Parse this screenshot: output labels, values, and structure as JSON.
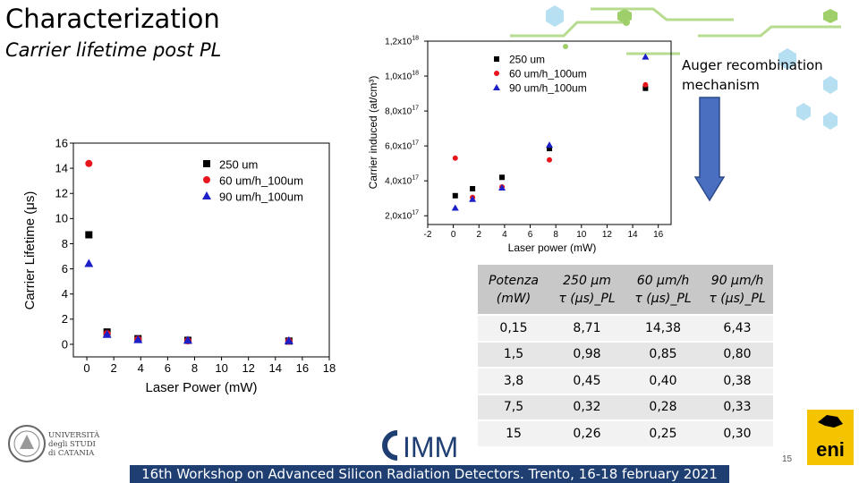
{
  "slide": {
    "title": "Characterization",
    "subtitle": "Carrier lifetime post PL",
    "annotation_line1": "Auger recombination",
    "annotation_line2": "mechanism",
    "footer": "16th Workshop on Advanced Silicon Radiation Detectors. Trento, 16-18 february 2021",
    "page_number": "15",
    "logo_unict_lines": [
      "UNIVERSITÀ",
      "degli STUDI",
      "di CATANIA"
    ],
    "logo_imm": "IMM",
    "logo_eni": "eni"
  },
  "colors": {
    "series_250": "#000000",
    "series_60": "#e8161c",
    "series_90": "#1b1fc8",
    "footer_bg": "#1f3f73",
    "arrow_fill": "#4a6fc1",
    "eni_yellow": "#f5c400"
  },
  "table": {
    "headers": [
      "Potenza (mW)",
      "250 μm τ (μs)_PL",
      "60 μm/h τ (μs)_PL",
      "90 μm/h τ (μs)_PL"
    ],
    "header_lines": [
      [
        "Potenza",
        "(mW)"
      ],
      [
        "250 μm",
        "τ (μs)_PL"
      ],
      [
        "60 μm/h",
        "τ (μs)_PL"
      ],
      [
        "90 μm/h",
        "τ (μs)_PL"
      ]
    ],
    "rows": [
      [
        "0,15",
        "8,71",
        "14,38",
        "6,43"
      ],
      [
        "1,5",
        "0,98",
        "0,85",
        "0,80"
      ],
      [
        "3,8",
        "0,45",
        "0,40",
        "0,38"
      ],
      [
        "7,5",
        "0,32",
        "0,28",
        "0,33"
      ],
      [
        "15",
        "0,26",
        "0,25",
        "0,30"
      ]
    ]
  },
  "chart_data": [
    {
      "type": "scatter",
      "xlabel": "Laser Power (mW)",
      "ylabel": "Carrier Lifetime (μs)",
      "xlim": [
        -1,
        18
      ],
      "ylim": [
        -1,
        16
      ],
      "xticks": [
        0,
        2,
        4,
        6,
        8,
        10,
        12,
        14,
        16,
        18
      ],
      "yticks": [
        0,
        2,
        4,
        6,
        8,
        10,
        12,
        14,
        16
      ],
      "grid": false,
      "legend_position": "top-right",
      "series": [
        {
          "name": "250 um",
          "marker": "square",
          "x": [
            0.15,
            1.5,
            3.8,
            7.5,
            15
          ],
          "y": [
            8.71,
            0.98,
            0.45,
            0.32,
            0.26
          ]
        },
        {
          "name": "60 um/h_100um",
          "marker": "circle",
          "x": [
            0.15,
            1.5,
            3.8,
            7.5,
            15
          ],
          "y": [
            14.38,
            0.85,
            0.4,
            0.28,
            0.25
          ]
        },
        {
          "name": "90 um/h_100um",
          "marker": "triangle",
          "x": [
            0.15,
            1.5,
            3.8,
            7.5,
            15
          ],
          "y": [
            6.43,
            0.8,
            0.38,
            0.33,
            0.3
          ]
        }
      ]
    },
    {
      "type": "scatter",
      "xlabel": "Laser power (mW)",
      "ylabel": "Carrier induced (at/cm³)",
      "xlim": [
        -2,
        17
      ],
      "ylim": [
        1.5e+17,
        1.2e+18
      ],
      "xticks": [
        -2,
        0,
        2,
        4,
        6,
        8,
        10,
        12,
        14,
        16
      ],
      "yticks": [
        2e+17,
        4e+17,
        6e+17,
        8e+17,
        1e+18,
        1.2e+18
      ],
      "ytick_labels": [
        "2,0x10",
        "4,0x10",
        "6,0x10",
        "8,0x10",
        "1,0x10",
        "1,2x10"
      ],
      "ytick_exponents": [
        "17",
        "17",
        "17",
        "17",
        "18",
        "18"
      ],
      "grid": false,
      "legend_position": "top-left",
      "series": [
        {
          "name": "250 um",
          "marker": "square",
          "x": [
            0.15,
            1.5,
            3.8,
            7.5,
            15
          ],
          "y": [
            3.15e+17,
            3.55e+17,
            4.2e+17,
            5.85e+17,
            9.3e+17
          ]
        },
        {
          "name": "60 um/h_100um",
          "marker": "circle",
          "x": [
            0.15,
            1.5,
            3.8,
            7.5,
            15
          ],
          "y": [
            5.3e+17,
            3.05e+17,
            3.65e+17,
            5.2e+17,
            9.5e+17
          ]
        },
        {
          "name": "90 um/h_100um",
          "marker": "triangle",
          "x": [
            0.15,
            1.5,
            3.8,
            7.5,
            15
          ],
          "y": [
            2.45e+17,
            2.95e+17,
            3.6e+17,
            6.05e+17,
            1.11e+18
          ]
        }
      ]
    }
  ]
}
